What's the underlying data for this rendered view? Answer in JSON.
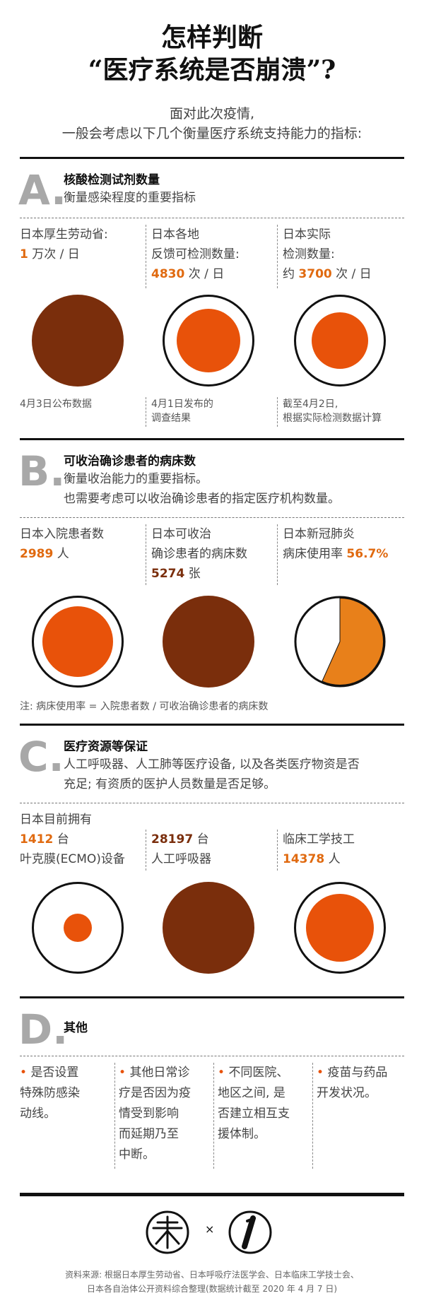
{
  "header": {
    "title_line1": "怎样判断",
    "title_line2": "“医疗系统是否崩溃”?",
    "subtitle_line1": "面对此次疫情,",
    "subtitle_line2": "一般会考虑以下几个衡量医疗系统支持能力的指标:"
  },
  "colors": {
    "dark_brown": "#7a2e0c",
    "orange": "#e8520a",
    "accent_text": "#e06a10",
    "gray_letter": "#a8a8a8"
  },
  "section_a": {
    "letter": "A.",
    "title": "核酸检测试剂数量",
    "desc": "衡量感染程度的重要指标",
    "cols": [
      {
        "line1": "日本厚生劳动省:",
        "num": "1",
        "unit": "万次 / 日",
        "note": "4月3日公布数据"
      },
      {
        "line1": "日本各地",
        "line2": "反馈可检测数量:",
        "num": "4830",
        "unit": "次 / 日",
        "note1": "4月1日发布的",
        "note2": "调查结果"
      },
      {
        "line1": "日本实际",
        "line2": "检测数量:",
        "prefix": "约",
        "num": "3700",
        "unit": "次 / 日",
        "note1": "截至4月2日,",
        "note2": "根据实际检测数据计算"
      }
    ]
  },
  "section_b": {
    "letter": "B.",
    "title": "可收治确诊患者的病床数",
    "desc1": "衡量收治能力的重要指标。",
    "desc2": "也需要考虑可以收治确诊患者的指定医疗机构数量。",
    "cols": [
      {
        "line1": "日本入院患者数",
        "num": "2989",
        "unit": "人"
      },
      {
        "line1": "日本可收治",
        "line2": "确诊患者的病床数",
        "num": "5274",
        "unit": "张"
      },
      {
        "line1": "日本新冠肺炎",
        "line2": "病床使用率",
        "num": "56.7%"
      }
    ],
    "bed_usage_fraction": 0.567,
    "note": "注: 病床使用率 = 入院患者数 / 可收治确诊患者的病床数"
  },
  "section_c": {
    "letter": "C.",
    "title": "医疗资源等保证",
    "desc1": "人工呼吸器、人工肺等医疗设备, 以及各类医疗物资是否",
    "desc2": "充足; 有资质的医护人员数量是否足够。",
    "intro": "日本目前拥有",
    "cols": [
      {
        "num": "1412",
        "unit": "台",
        "label": "叶克膜(ECMO)设备"
      },
      {
        "num": "28197",
        "unit": "台",
        "label": "人工呼吸器"
      },
      {
        "line1": "临床工学技工",
        "num": "14378",
        "unit": "人"
      }
    ]
  },
  "section_d": {
    "letter": "D.",
    "title": "其他",
    "items": [
      {
        "lines": [
          "是否设置",
          "特殊防感染",
          "动线。"
        ]
      },
      {
        "lines": [
          "其他日常诊",
          "疗是否因为疫",
          "情受到影响",
          "而延期乃至",
          "中断。"
        ]
      },
      {
        "lines": [
          "不同医院、",
          "地区之间, 是",
          "否建立相互支",
          "援体制。"
        ]
      },
      {
        "lines": [
          "疫苗与药品",
          "开发状况。"
        ]
      }
    ]
  },
  "footer": {
    "times": "×",
    "source1": "资料来源: 根据日本厚生劳动省、日本呼吸疗法医学会、日本临床工学技士会、",
    "source2": "日本各自治体公开资料综合整理(数据统计截至 2020 年 4 月 7 日)"
  }
}
